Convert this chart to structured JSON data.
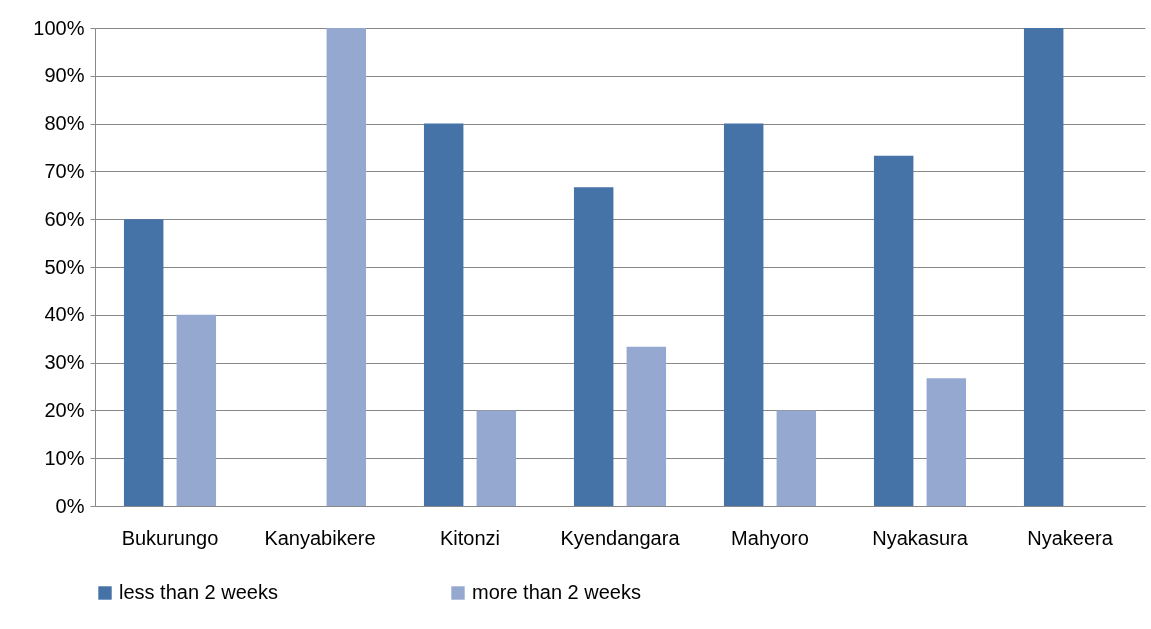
{
  "chart_data": {
    "type": "bar",
    "categories": [
      "Bukurungo",
      "Kanyabikere",
      "Kitonzi",
      "Kyendangara",
      "Mahyoro",
      "Nyakasura",
      "Nyakeera"
    ],
    "series": [
      {
        "name": "less than 2 weeks",
        "color": "#4572a7",
        "values": [
          60,
          0,
          80,
          66.7,
          80,
          73.3,
          100
        ]
      },
      {
        "name": "more than 2 weeks",
        "color": "#95a9d0",
        "values": [
          40,
          100,
          20,
          33.3,
          20,
          26.7,
          0
        ]
      }
    ],
    "ylim": [
      0,
      100
    ],
    "yticks": [
      {
        "value": 0,
        "label": "0%"
      },
      {
        "value": 10,
        "label": "10%"
      },
      {
        "value": 20,
        "label": "20%"
      },
      {
        "value": 30,
        "label": "30%"
      },
      {
        "value": 40,
        "label": "40%"
      },
      {
        "value": 50,
        "label": "50%"
      },
      {
        "value": 60,
        "label": "60%"
      },
      {
        "value": 70,
        "label": "70%"
      },
      {
        "value": 80,
        "label": "80%"
      },
      {
        "value": 90,
        "label": "90%"
      },
      {
        "value": 100,
        "label": "100%"
      }
    ],
    "grid": "y",
    "legend": "bottom"
  }
}
